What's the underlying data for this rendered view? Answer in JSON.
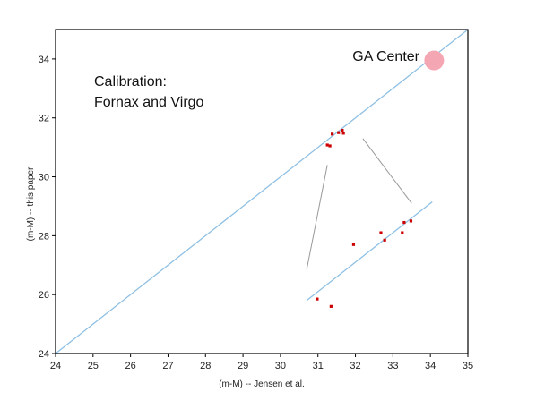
{
  "chart_data": {
    "type": "scatter",
    "xlabel": "(m-M)  -- Jensen et al.",
    "ylabel": "(m-M)  -- this paper",
    "xlim": [
      24,
      35
    ],
    "ylim": [
      24,
      35
    ],
    "x_ticks": [
      24,
      25,
      26,
      27,
      28,
      29,
      30,
      31,
      32,
      33,
      34,
      35
    ],
    "y_ticks": [
      24,
      26,
      28,
      30,
      32,
      34
    ],
    "grid": false,
    "annotations": {
      "calibration_line1": "Calibration:",
      "calibration_line2": "Fornax and Virgo",
      "ga_center": "GA Center"
    },
    "ga_center_point": {
      "x": 34.1,
      "y": 33.95
    },
    "identity_line": {
      "x": [
        24,
        35
      ],
      "y": [
        24,
        35
      ]
    },
    "upper_points": [
      {
        "x": 31.25,
        "y": 31.08
      },
      {
        "x": 31.32,
        "y": 31.05
      },
      {
        "x": 31.38,
        "y": 31.45
      },
      {
        "x": 31.55,
        "y": 31.5
      },
      {
        "x": 31.65,
        "y": 31.58
      },
      {
        "x": 31.68,
        "y": 31.48
      }
    ],
    "offset_fit_line": {
      "x": [
        30.7,
        34.05
      ],
      "y": [
        25.8,
        29.15
      ]
    },
    "lower_points": [
      {
        "x": 30.98,
        "y": 25.85
      },
      {
        "x": 31.35,
        "y": 25.6
      },
      {
        "x": 31.95,
        "y": 27.7
      },
      {
        "x": 32.68,
        "y": 28.1
      },
      {
        "x": 32.78,
        "y": 27.85
      },
      {
        "x": 33.25,
        "y": 28.1
      },
      {
        "x": 33.3,
        "y": 28.45
      },
      {
        "x": 33.48,
        "y": 28.5
      }
    ],
    "connector_lines": [
      {
        "x": [
          31.25,
          30.7
        ],
        "y": [
          30.4,
          26.85
        ]
      },
      {
        "x": [
          32.2,
          33.5
        ],
        "y": [
          31.3,
          29.1
        ]
      }
    ],
    "colors": {
      "identity_line": "#8ec0e4",
      "points": "#cc0000",
      "ga_center": "#f4a7b2",
      "connector": "#999999",
      "frame": "#000000"
    }
  }
}
